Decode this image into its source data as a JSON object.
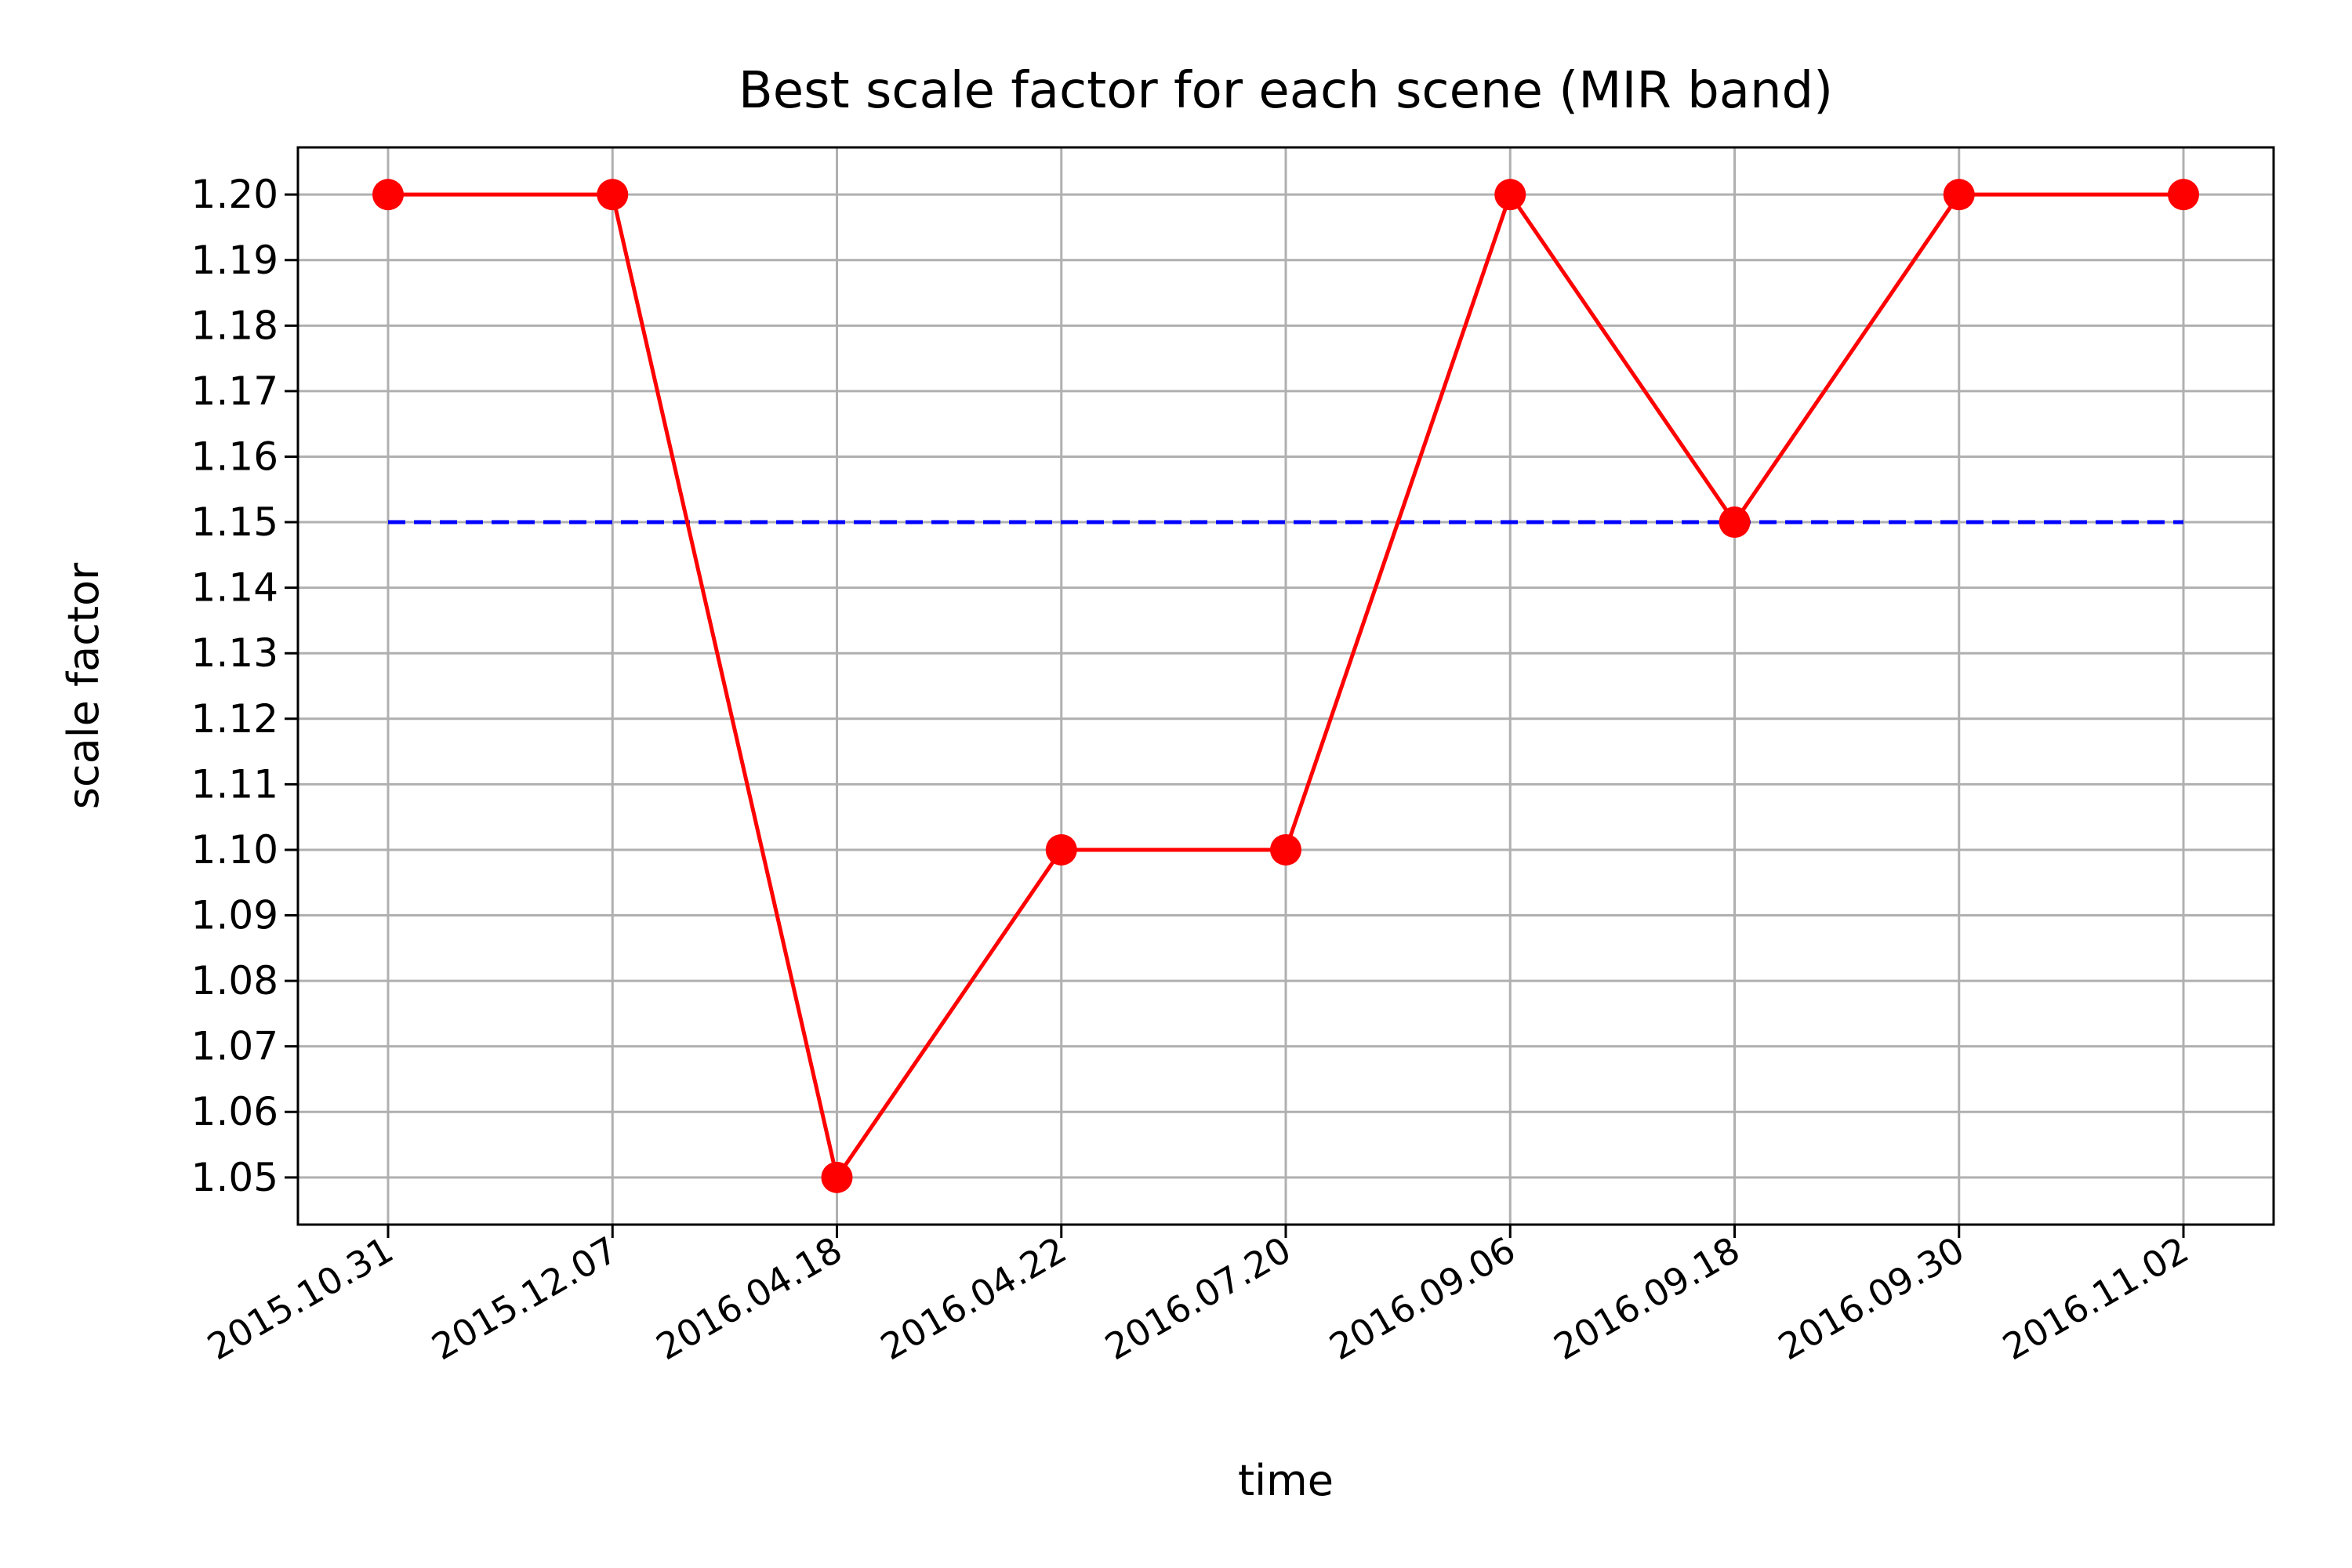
{
  "chart_data": {
    "type": "line",
    "title": "Best scale factor for each scene (MIR band)",
    "xlabel": "time",
    "ylabel": "scale factor",
    "categories": [
      "2015.10.31",
      "2015.12.07",
      "2016.04.18",
      "2016.04.22",
      "2016.07.20",
      "2016.09.06",
      "2016.09.18",
      "2016.09.30",
      "2016.11.02"
    ],
    "series": [
      {
        "values": [
          1.2,
          1.2,
          1.05,
          1.1,
          1.1,
          1.2,
          1.15,
          1.2,
          1.2
        ],
        "color": "#ff0000",
        "style": "solid",
        "marker": "circle"
      },
      {
        "values": [
          1.15,
          1.15,
          1.15,
          1.15,
          1.15,
          1.15,
          1.15,
          1.15,
          1.15
        ],
        "color": "#0000ff",
        "style": "dashed",
        "marker": "none"
      }
    ],
    "yticks": [
      "1.05",
      "1.06",
      "1.07",
      "1.08",
      "1.09",
      "1.10",
      "1.11",
      "1.12",
      "1.13",
      "1.14",
      "1.15",
      "1.16",
      "1.17",
      "1.18",
      "1.19",
      "1.20"
    ],
    "ylim": [
      1.0428,
      1.2072
    ],
    "grid": true,
    "legend": "none"
  }
}
